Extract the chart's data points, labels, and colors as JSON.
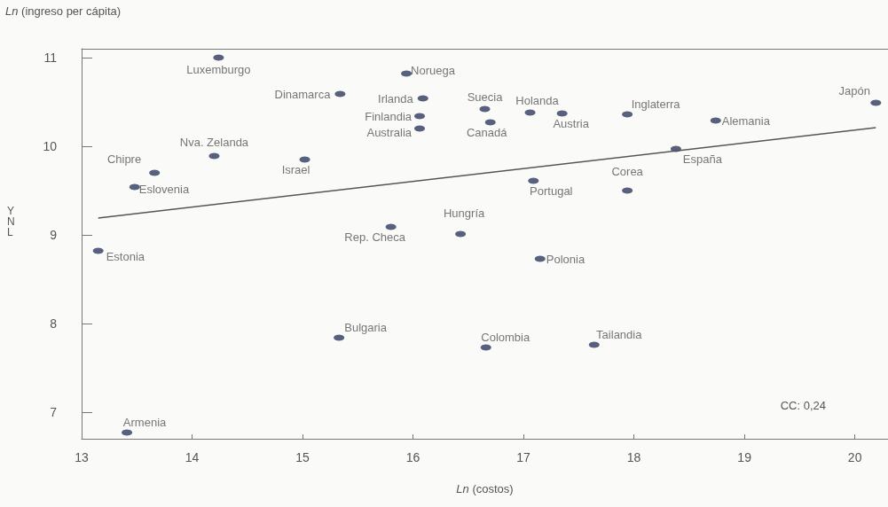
{
  "chart_data": {
    "type": "scatter",
    "xlabel": "Ln (costos)",
    "ylabel": "Ln (ingreso per cápita)",
    "xlim": [
      13,
      20.3
    ],
    "xticks": [
      13,
      14,
      15,
      16,
      17,
      18,
      19,
      20
    ],
    "ylim": [
      6.7,
      11.1
    ],
    "yticks": [
      7,
      8,
      9,
      10,
      11
    ],
    "grid": false,
    "marker": "circle",
    "series": [
      {
        "color": "#2e3a5c",
        "x": [
          14.24,
          15.94,
          15.34,
          16.09,
          16.06,
          16.06,
          14.2,
          15.02,
          13.66,
          13.48,
          15.8,
          13.15,
          13.41,
          15.33,
          16.65,
          16.7,
          17.06,
          17.35,
          17.94,
          18.74,
          18.38,
          20.19,
          17.09,
          17.94,
          16.43,
          17.15,
          16.66,
          17.64
        ],
        "values": [
          11.0,
          10.82,
          10.59,
          10.54,
          10.34,
          10.2,
          9.89,
          9.85,
          9.7,
          9.54,
          9.09,
          8.82,
          6.77,
          7.84,
          10.42,
          10.27,
          10.38,
          10.37,
          10.36,
          10.29,
          9.97,
          10.49,
          9.61,
          9.5,
          9.01,
          8.73,
          7.73,
          7.76
        ]
      },
      {
        "type": "line",
        "color": "#555555",
        "marker": "none",
        "x": [
          13.15,
          20.19
        ],
        "values": [
          9.19,
          10.21
        ]
      }
    ],
    "annotations": [
      {
        "text": "Luxemburgo",
        "x": 14.24,
        "y": 11.0
      },
      {
        "text": "Noruega",
        "x": 15.94,
        "y": 10.82
      },
      {
        "text": "Dinamarca",
        "x": 15.34,
        "y": 10.59
      },
      {
        "text": "Irlanda",
        "x": 16.09,
        "y": 10.54
      },
      {
        "text": "Finlandia",
        "x": 16.06,
        "y": 10.34
      },
      {
        "text": "Australia",
        "x": 16.06,
        "y": 10.2
      },
      {
        "text": "Nva. Zelanda",
        "x": 14.2,
        "y": 9.89
      },
      {
        "text": "Israel",
        "x": 15.02,
        "y": 9.85
      },
      {
        "text": "Chipre",
        "x": 13.66,
        "y": 9.7
      },
      {
        "text": "Eslovenia",
        "x": 13.48,
        "y": 9.54
      },
      {
        "text": "Rep. Checa",
        "x": 15.8,
        "y": 9.09
      },
      {
        "text": "Estonia",
        "x": 13.15,
        "y": 8.82
      },
      {
        "text": "Armenia",
        "x": 13.41,
        "y": 6.77
      },
      {
        "text": "Bulgaria",
        "x": 15.33,
        "y": 7.84
      },
      {
        "text": "Suecia",
        "x": 16.65,
        "y": 10.42
      },
      {
        "text": "Canadá",
        "x": 16.7,
        "y": 10.27
      },
      {
        "text": "Holanda",
        "x": 17.06,
        "y": 10.38
      },
      {
        "text": "Austria",
        "x": 17.35,
        "y": 10.37
      },
      {
        "text": "Inglaterra",
        "x": 17.94,
        "y": 10.36
      },
      {
        "text": "Alemania",
        "x": 18.74,
        "y": 10.29
      },
      {
        "text": "España",
        "x": 18.38,
        "y": 9.97
      },
      {
        "text": "Japón",
        "x": 20.19,
        "y": 10.49
      },
      {
        "text": "Portugal",
        "x": 17.09,
        "y": 9.61
      },
      {
        "text": "Corea",
        "x": 17.94,
        "y": 9.5
      },
      {
        "text": "Hungría",
        "x": 16.43,
        "y": 9.01
      },
      {
        "text": "Polonia",
        "x": 17.15,
        "y": 8.73
      },
      {
        "text": "Colombia",
        "x": 16.66,
        "y": 7.73
      },
      {
        "text": "Tailandia",
        "x": 17.64,
        "y": 7.76
      },
      "CC: 0,24",
      "YNL"
    ]
  }
}
